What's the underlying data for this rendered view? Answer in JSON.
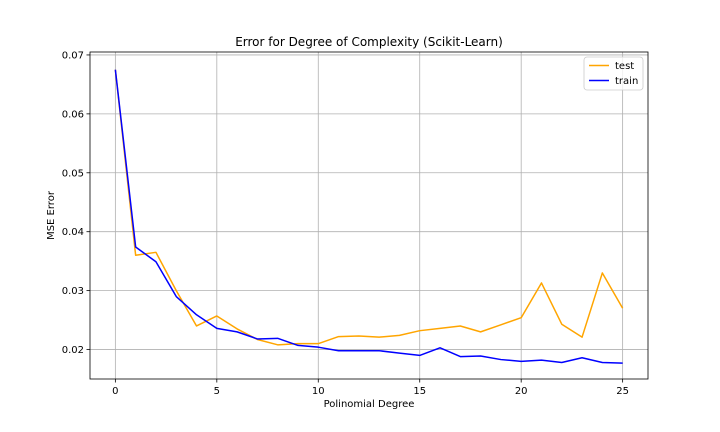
{
  "chart_data": {
    "type": "line",
    "title": "Error for Degree of Complexity (Scikit-Learn)",
    "xlabel": "Polinomial Degree",
    "ylabel": "MSE Error",
    "xlim": [
      -1.25,
      26.25
    ],
    "ylim": [
      0.015,
      0.0705
    ],
    "xticks": [
      0,
      5,
      10,
      15,
      20,
      25
    ],
    "yticks": [
      0.02,
      0.03,
      0.04,
      0.05,
      0.06,
      0.07
    ],
    "xtick_labels": [
      "0",
      "5",
      "10",
      "15",
      "20",
      "25"
    ],
    "ytick_labels": [
      "0.02",
      "0.03",
      "0.04",
      "0.05",
      "0.06",
      "0.07"
    ],
    "grid": true,
    "legend_position": "top-right",
    "x": [
      0,
      1,
      2,
      3,
      4,
      5,
      6,
      7,
      8,
      9,
      10,
      11,
      12,
      13,
      14,
      15,
      16,
      17,
      18,
      19,
      20,
      21,
      22,
      23,
      24,
      25
    ],
    "series": [
      {
        "name": "test",
        "color": "#ffa500",
        "values": [
          0.0675,
          0.036,
          0.0365,
          0.03,
          0.024,
          0.0257,
          0.0235,
          0.0217,
          0.0208,
          0.021,
          0.021,
          0.0222,
          0.0223,
          0.0221,
          0.0224,
          0.0232,
          0.0236,
          0.024,
          0.023,
          0.0242,
          0.0254,
          0.0313,
          0.0243,
          0.0221,
          0.033,
          0.027
        ]
      },
      {
        "name": "train",
        "color": "#0000ff",
        "values": [
          0.0675,
          0.0374,
          0.0349,
          0.029,
          0.0259,
          0.0236,
          0.023,
          0.0218,
          0.0219,
          0.0207,
          0.0204,
          0.0198,
          0.0198,
          0.0198,
          0.0194,
          0.019,
          0.0203,
          0.0188,
          0.0189,
          0.0183,
          0.018,
          0.0182,
          0.0178,
          0.0186,
          0.0178,
          0.0177
        ]
      }
    ]
  }
}
